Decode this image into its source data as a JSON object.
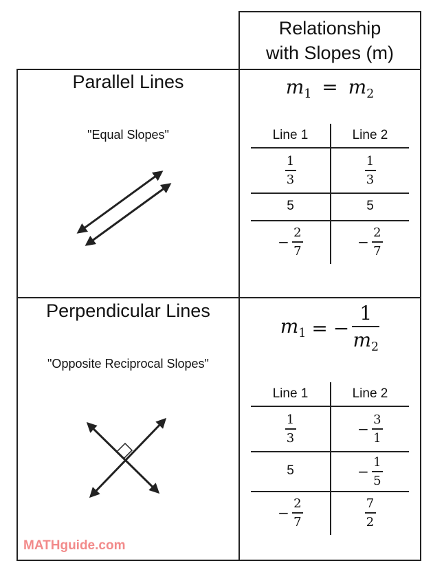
{
  "header": {
    "line1": "Relationship",
    "line2": "with Slopes (m)"
  },
  "parallel": {
    "title": "Parallel Lines",
    "subtitle": "\"Equal Slopes\"",
    "formula": {
      "lhs_m": "m",
      "lhs_sub": "1",
      "eq": "=",
      "rhs_m": "m",
      "rhs_sub": "2"
    },
    "table": {
      "col1": "Line 1",
      "col2": "Line 2",
      "rows": [
        {
          "c1": {
            "sign": "",
            "num": "1",
            "den": "3"
          },
          "c2": {
            "sign": "",
            "num": "1",
            "den": "3"
          }
        },
        {
          "c1": "5",
          "c2": "5"
        },
        {
          "c1": {
            "sign": "−",
            "num": "2",
            "den": "7"
          },
          "c2": {
            "sign": "−",
            "num": "2",
            "den": "7"
          }
        }
      ]
    }
  },
  "perpendicular": {
    "title": "Perpendicular Lines",
    "subtitle": "\"Opposite Reciprocal Slopes\"",
    "formula": {
      "lhs_m": "m",
      "lhs_sub": "1",
      "eq": "=",
      "sign": "−",
      "num": "1",
      "den_m": "m",
      "den_sub": "2"
    },
    "table": {
      "col1": "Line 1",
      "col2": "Line 2",
      "rows": [
        {
          "c1": {
            "sign": "",
            "num": "1",
            "den": "3"
          },
          "c2": {
            "sign": "−",
            "num": "3",
            "den": "1"
          }
        },
        {
          "c1": "5",
          "c2": {
            "sign": "−",
            "num": "1",
            "den": "5"
          }
        },
        {
          "c1": {
            "sign": "−",
            "num": "2",
            "den": "7"
          },
          "c2": {
            "sign": "",
            "num": "7",
            "den": "2"
          }
        }
      ]
    }
  },
  "brand": "MATHguide.com",
  "colors": {
    "brand": "#f28a8a",
    "lines": "#222222"
  }
}
